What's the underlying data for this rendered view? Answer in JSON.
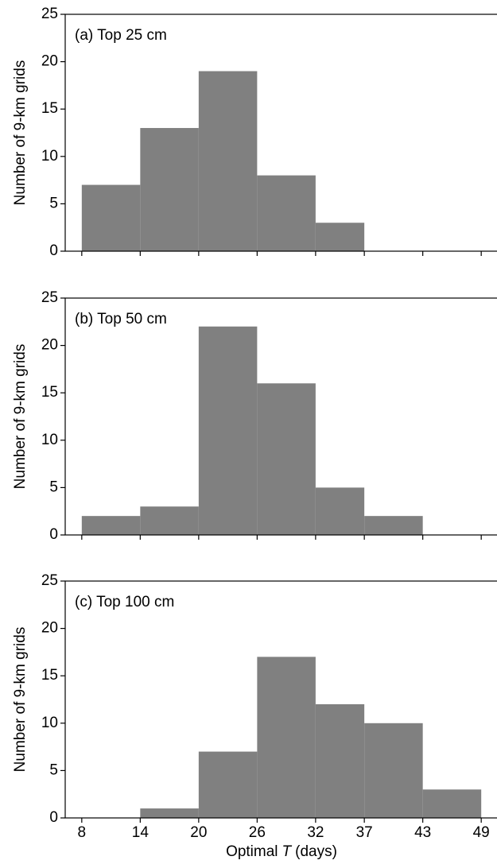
{
  "chart_data": [
    {
      "type": "histogram",
      "title": "(a) Top 25 cm",
      "ylabel": "Number of 9-km grids",
      "bins": [
        8,
        14,
        20,
        26,
        32,
        37,
        43,
        49
      ],
      "values": [
        7,
        13,
        19,
        8,
        3,
        0,
        0
      ],
      "color": "#808080",
      "xlim": [
        6.3,
        50.7
      ],
      "xticks": [
        8,
        14,
        20,
        26,
        32,
        37,
        43,
        49
      ],
      "show_xticklabels": false,
      "ylim": [
        0,
        25
      ],
      "yticks": [
        0,
        5,
        10,
        15,
        20,
        25
      ]
    },
    {
      "type": "histogram",
      "title": "(b) Top 50 cm",
      "ylabel": "Number of 9-km grids",
      "bins": [
        8,
        14,
        20,
        26,
        32,
        37,
        43,
        49
      ],
      "values": [
        2,
        3,
        22,
        16,
        5,
        2,
        0
      ],
      "color": "#808080",
      "xlim": [
        6.3,
        50.7
      ],
      "xticks": [
        8,
        14,
        20,
        26,
        32,
        37,
        43,
        49
      ],
      "show_xticklabels": false,
      "ylim": [
        0,
        25
      ],
      "yticks": [
        0,
        5,
        10,
        15,
        20,
        25
      ]
    },
    {
      "type": "histogram",
      "title": "(c) Top 100 cm",
      "ylabel": "Number of 9-km grids",
      "xlabel_parts": [
        "Optimal",
        "T",
        "(days)"
      ],
      "bins": [
        8,
        14,
        20,
        26,
        32,
        37,
        43,
        49
      ],
      "values": [
        0,
        1,
        7,
        17,
        12,
        10,
        3
      ],
      "color": "#808080",
      "xlim": [
        6.3,
        50.7
      ],
      "xticks": [
        8,
        14,
        20,
        26,
        32,
        37,
        43,
        49
      ],
      "show_xticklabels": true,
      "ylim": [
        0,
        25
      ],
      "yticks": [
        0,
        5,
        10,
        15,
        20,
        25
      ]
    }
  ]
}
